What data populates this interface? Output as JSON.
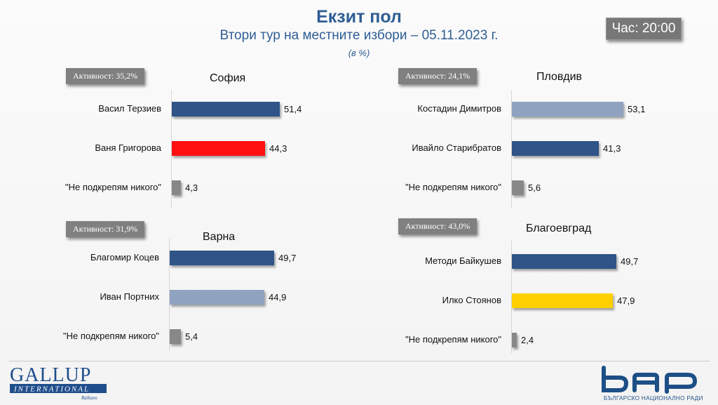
{
  "header": {
    "title": "Екзит пол",
    "subtitle": "Втори тур на местните избори – 05.11.2023 г.",
    "unit": "(в %)",
    "clock": "Час: 20:00"
  },
  "chart_data": [
    {
      "type": "bar",
      "title": "София",
      "turnout_label": "Активност: 35,2%",
      "categories": [
        "Васил Терзиев",
        "Ваня Григорова",
        "\"Не подкрепям никого\""
      ],
      "values": [
        51.4,
        44.3,
        4.3
      ],
      "value_labels": [
        "51,4",
        "44,3",
        "4,3"
      ],
      "colors": [
        "#2e5488",
        "#ff1010",
        "#888888"
      ]
    },
    {
      "type": "bar",
      "title": "Пловдив",
      "turnout_label": "Активност: 24,1%",
      "categories": [
        "Костадин Димитров",
        "Ивайло Старибратов",
        "\"Не подкрепям никого\""
      ],
      "values": [
        53.1,
        41.3,
        5.6
      ],
      "value_labels": [
        "53,1",
        "41,3",
        "5,6"
      ],
      "colors": [
        "#8fa3c0",
        "#2e5488",
        "#888888"
      ]
    },
    {
      "type": "bar",
      "title": "Варна",
      "turnout_label": "Активност: 31,9%",
      "categories": [
        "Благомир Коцев",
        "Иван Портних",
        "\"Не подкрепям никого\""
      ],
      "values": [
        49.7,
        44.9,
        5.4
      ],
      "value_labels": [
        "49,7",
        "44,9",
        "5,4"
      ],
      "colors": [
        "#2e5488",
        "#8fa3c0",
        "#888888"
      ]
    },
    {
      "type": "bar",
      "title": "Благоевград",
      "turnout_label": "Активност: 43,0%",
      "categories": [
        "Методи Байкушев",
        "Илко Стоянов",
        "\"Не подкрепям никого\""
      ],
      "values": [
        49.7,
        47.9,
        2.4
      ],
      "value_labels": [
        "49,7",
        "47,9",
        "2,4"
      ],
      "colors": [
        "#2e5488",
        "#ffd000",
        "#888888"
      ]
    }
  ],
  "logos": {
    "gallup_main": "GALLUP",
    "gallup_sub": "INTERNATIONAL",
    "gallup_region": "Balkans",
    "bnr_caption": "БЪЛГАРСКО НАЦИОНАЛНО РАДИО"
  },
  "colors": {
    "title": "#2f5d95",
    "badge": "#808080"
  }
}
